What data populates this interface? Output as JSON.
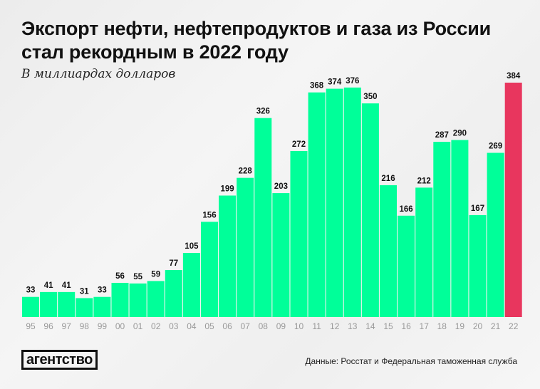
{
  "title_line1": "Экспорт нефти, нефтепродуктов и газа из России",
  "title_line2": "стал рекордным в 2022 году",
  "subtitle": "В миллиардах долларов",
  "logo": "агентство",
  "source": "Данные: Росстат и Федеральная таможенная служба",
  "colors": {
    "bar": "#00ff99",
    "highlight": "#e8365e"
  },
  "chart_data": {
    "type": "bar",
    "title": "Экспорт нефти, нефтепродуктов и газа из России стал рекордным в 2022 году",
    "ylabel": "В миллиардах долларов",
    "categories": [
      "95",
      "96",
      "97",
      "98",
      "99",
      "00",
      "01",
      "02",
      "03",
      "04",
      "05",
      "06",
      "07",
      "08",
      "09",
      "10",
      "11",
      "12",
      "13",
      "14",
      "15",
      "16",
      "17",
      "18",
      "19",
      "20",
      "21",
      "22"
    ],
    "values": [
      33,
      41,
      41,
      31,
      33,
      56,
      55,
      59,
      77,
      105,
      156,
      199,
      228,
      326,
      203,
      272,
      368,
      374,
      376,
      350,
      216,
      166,
      212,
      287,
      290,
      167,
      269,
      384
    ],
    "highlight_category": "22",
    "ylim": [
      0,
      384
    ],
    "grid": false
  }
}
